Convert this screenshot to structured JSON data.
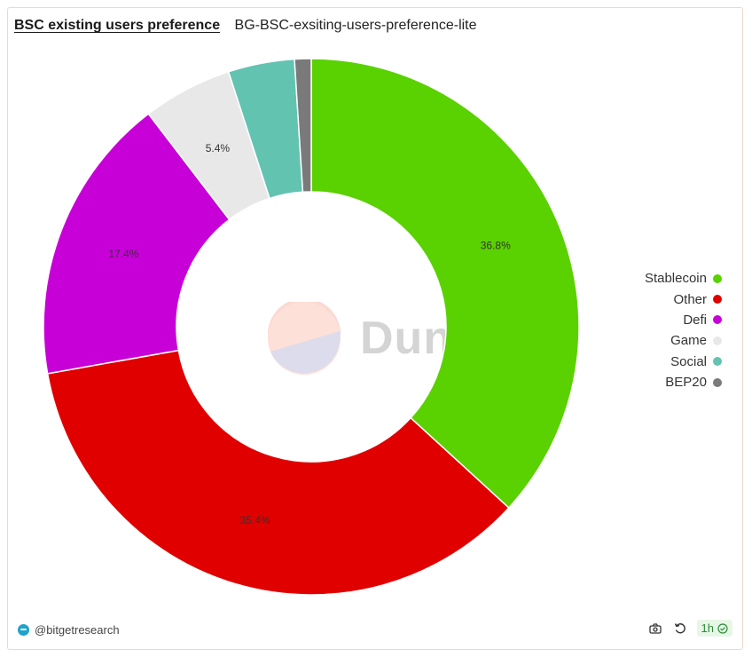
{
  "header": {
    "title": "BSC existing users preference",
    "subtitle": "BG-BSC-exsiting-users-preference-lite"
  },
  "watermark": {
    "text": "Dune"
  },
  "chart_data": {
    "type": "pie",
    "title": "BSC existing users preference",
    "subtitle": "BG-BSC-exsiting-users-preference-lite",
    "donut": true,
    "legend_position": "right",
    "slices": [
      {
        "name": "Stablecoin",
        "value": 36.8,
        "label": "36.8%",
        "color": "#5ad100"
      },
      {
        "name": "Other",
        "value": 35.4,
        "label": "35.4%",
        "color": "#e00000"
      },
      {
        "name": "Defi",
        "value": 17.4,
        "label": "17.4%",
        "color": "#c800d8"
      },
      {
        "name": "Game",
        "value": 5.4,
        "label": "5.4%",
        "color": "#e8e8e8"
      },
      {
        "name": "Social",
        "value": 4.0,
        "label": "",
        "color": "#62c3b1"
      },
      {
        "name": "BEP20",
        "value": 1.0,
        "label": "",
        "color": "#7a7a7a"
      }
    ]
  },
  "footer": {
    "author": "@bitgetresearch",
    "refresh_badge": "1h",
    "icons": [
      "camera-icon",
      "refresh-icon",
      "check-circle-icon"
    ]
  }
}
